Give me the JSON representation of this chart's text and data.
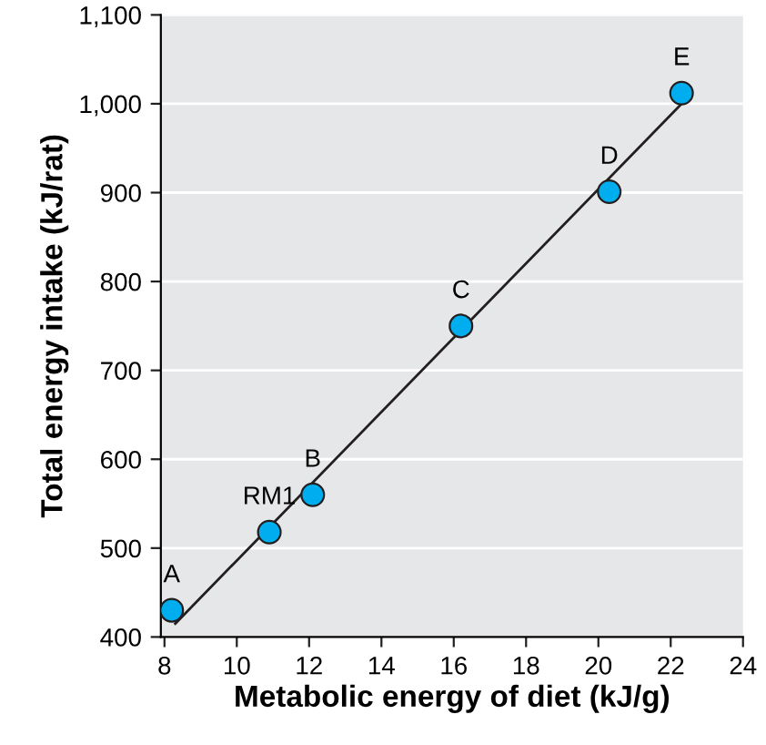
{
  "chart_data": {
    "type": "scatter",
    "xlabel": "Metabolic energy of diet (kJ/g)",
    "ylabel": "Total energy intake (kJ/rat)",
    "xlim": [
      7.9,
      24
    ],
    "xticks": [
      8,
      10,
      12,
      14,
      16,
      18,
      20,
      22,
      24
    ],
    "ylim": [
      400,
      1100
    ],
    "yticks": [
      400,
      500,
      600,
      700,
      800,
      900,
      {
        "value": 1000,
        "label": "1,000"
      },
      {
        "value": 1100,
        "label": "1,100"
      }
    ],
    "grid": "y",
    "series": [
      {
        "marker": "circle",
        "color": "#00aeef",
        "x": [
          8.2,
          10.9,
          12.1,
          16.2,
          20.3,
          22.3
        ],
        "values": [
          430,
          518,
          560,
          750,
          901,
          1012
        ]
      },
      {
        "type": "line",
        "marker": "none",
        "color": "#231f20",
        "x": [
          8.3,
          22.3
        ],
        "values": [
          415,
          1000
        ]
      }
    ],
    "annotations": [
      {
        "text": "A",
        "x": 8.2,
        "y": 430
      },
      {
        "text": "RM1",
        "x": 10.9,
        "y": 518
      },
      {
        "text": "B",
        "x": 12.1,
        "y": 560
      },
      {
        "text": "C",
        "x": 16.2,
        "y": 750
      },
      {
        "text": "D",
        "x": 20.3,
        "y": 901
      },
      {
        "text": "E",
        "x": 22.3,
        "y": 1012
      }
    ]
  }
}
